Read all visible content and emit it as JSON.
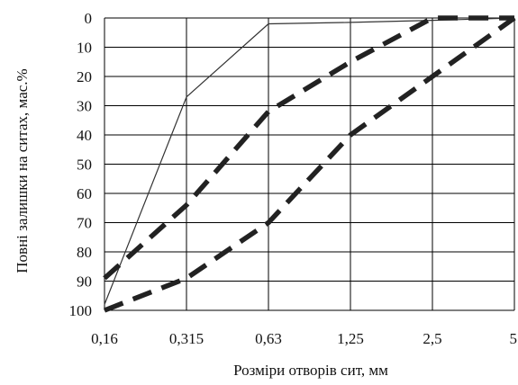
{
  "chart_data": {
    "type": "line",
    "xlabel": "Розміри отворів сит, мм",
    "ylabel": "Повні залишки на ситах, мас.%",
    "categories": [
      "0,16",
      "0,315",
      "0,63",
      "1,25",
      "2,5",
      "5"
    ],
    "yticks": [
      "0",
      "10",
      "20",
      "30",
      "40",
      "50",
      "60",
      "70",
      "80",
      "90",
      "100"
    ],
    "ylim": [
      0,
      100
    ],
    "y_inverted": true,
    "grid": true,
    "legend": "none",
    "series": [
      {
        "style": "solid-thin",
        "color": "#333333",
        "values": [
          98,
          27,
          2,
          1.5,
          0.8,
          0
        ]
      },
      {
        "style": "dashed-thick",
        "color": "#222222",
        "values": [
          89,
          64,
          32,
          15,
          0,
          0
        ]
      },
      {
        "style": "dashed-thick",
        "color": "#222222",
        "values": [
          100,
          89,
          70,
          40,
          20,
          0
        ]
      }
    ]
  }
}
